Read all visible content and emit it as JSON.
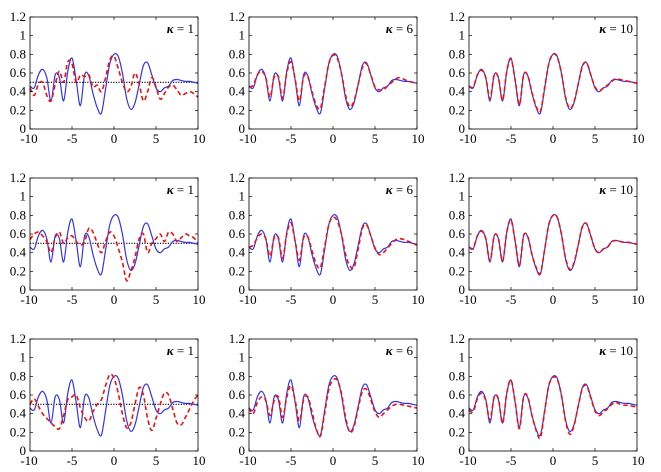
{
  "chart_data": {
    "type": "line",
    "layout": "3x3 grid of line plots",
    "xlim": [
      -10,
      10
    ],
    "ylim": [
      0,
      1.2
    ],
    "xticks": [
      -10,
      -5,
      0,
      5,
      10
    ],
    "yticks": [
      0,
      0.2,
      0.4,
      0.6,
      0.8,
      1,
      1.2
    ],
    "xtick_labels": [
      "-10",
      "-5",
      "0",
      "5",
      "10"
    ],
    "ytick_labels": [
      "0",
      "0.2",
      "0.4",
      "0.6",
      "0.8",
      "1",
      "1.2"
    ],
    "series_styles": {
      "exact": {
        "color": "#3333ee",
        "style": "solid"
      },
      "approx": {
        "color": "#ee1111",
        "style": "dashed"
      },
      "reference": {
        "color": "#000000",
        "style": "dotted"
      }
    },
    "exact_curve": {
      "x": [
        -10,
        -9.5,
        -9,
        -8.5,
        -8,
        -7.5,
        -7,
        -6.5,
        -6,
        -5.5,
        -5,
        -4.5,
        -4,
        -3.5,
        -3,
        -2.5,
        -2,
        -1.5,
        -1,
        -0.5,
        0,
        0.5,
        1,
        1.5,
        2,
        2.5,
        3,
        3.5,
        4,
        4.5,
        5,
        5.5,
        6,
        6.5,
        7,
        7.5,
        8,
        8.5,
        9,
        9.5,
        10
      ],
      "y": [
        0.46,
        0.44,
        0.58,
        0.64,
        0.55,
        0.3,
        0.58,
        0.55,
        0.3,
        0.62,
        0.76,
        0.52,
        0.25,
        0.58,
        0.57,
        0.38,
        0.23,
        0.17,
        0.43,
        0.7,
        0.8,
        0.78,
        0.6,
        0.33,
        0.21,
        0.28,
        0.48,
        0.68,
        0.71,
        0.58,
        0.44,
        0.4,
        0.44,
        0.46,
        0.52,
        0.53,
        0.52,
        0.51,
        0.51,
        0.5,
        0.49
      ]
    },
    "panels": [
      {
        "row": 1,
        "col": 1,
        "kappa_label": "κ = 1",
        "reference_line": 0.5,
        "approx_y": [
          0.44,
          0.36,
          0.48,
          0.5,
          0.36,
          0.3,
          0.48,
          0.62,
          0.5,
          0.72,
          0.7,
          0.5,
          0.58,
          0.56,
          0.58,
          0.45,
          0.47,
          0.4,
          0.55,
          0.74,
          0.78,
          0.65,
          0.5,
          0.4,
          0.45,
          0.6,
          0.48,
          0.3,
          0.4,
          0.55,
          0.45,
          0.32,
          0.38,
          0.45,
          0.47,
          0.42,
          0.36,
          0.38,
          0.4,
          0.38,
          0.34
        ]
      },
      {
        "row": 1,
        "col": 2,
        "kappa_label": "κ = 6",
        "reference_line": null,
        "approx_y": [
          0.45,
          0.47,
          0.58,
          0.62,
          0.55,
          0.34,
          0.56,
          0.56,
          0.33,
          0.6,
          0.72,
          0.53,
          0.3,
          0.56,
          0.56,
          0.4,
          0.26,
          0.22,
          0.45,
          0.7,
          0.79,
          0.76,
          0.6,
          0.36,
          0.24,
          0.3,
          0.48,
          0.66,
          0.7,
          0.58,
          0.45,
          0.42,
          0.42,
          0.46,
          0.5,
          0.54,
          0.55,
          0.53,
          0.51,
          0.5,
          0.49
        ]
      },
      {
        "row": 1,
        "col": 3,
        "kappa_label": "κ = 10",
        "reference_line": null,
        "approx_y": [
          0.46,
          0.45,
          0.58,
          0.63,
          0.55,
          0.32,
          0.58,
          0.55,
          0.31,
          0.62,
          0.75,
          0.52,
          0.26,
          0.58,
          0.57,
          0.39,
          0.24,
          0.19,
          0.44,
          0.7,
          0.8,
          0.77,
          0.6,
          0.34,
          0.22,
          0.29,
          0.48,
          0.67,
          0.71,
          0.58,
          0.45,
          0.41,
          0.44,
          0.47,
          0.51,
          0.54,
          0.53,
          0.52,
          0.51,
          0.5,
          0.49
        ]
      },
      {
        "row": 2,
        "col": 1,
        "kappa_label": "κ = 1",
        "reference_line": 0.5,
        "approx_y": [
          0.54,
          0.6,
          0.62,
          0.58,
          0.52,
          0.4,
          0.56,
          0.62,
          0.5,
          0.56,
          0.58,
          0.52,
          0.48,
          0.52,
          0.66,
          0.62,
          0.5,
          0.4,
          0.52,
          0.62,
          0.58,
          0.45,
          0.3,
          0.1,
          0.2,
          0.35,
          0.55,
          0.6,
          0.4,
          0.5,
          0.55,
          0.6,
          0.52,
          0.62,
          0.6,
          0.52,
          0.56,
          0.6,
          0.58,
          0.56,
          0.5
        ]
      },
      {
        "row": 2,
        "col": 2,
        "kappa_label": "κ = 6",
        "reference_line": null,
        "approx_y": [
          0.46,
          0.48,
          0.56,
          0.6,
          0.55,
          0.36,
          0.56,
          0.56,
          0.34,
          0.6,
          0.72,
          0.52,
          0.32,
          0.56,
          0.57,
          0.42,
          0.28,
          0.24,
          0.46,
          0.7,
          0.78,
          0.74,
          0.6,
          0.38,
          0.26,
          0.24,
          0.44,
          0.66,
          0.7,
          0.58,
          0.45,
          0.38,
          0.4,
          0.45,
          0.5,
          0.54,
          0.55,
          0.54,
          0.52,
          0.5,
          0.48
        ]
      },
      {
        "row": 2,
        "col": 3,
        "kappa_label": "κ = 10",
        "reference_line": null,
        "approx_y": [
          0.46,
          0.45,
          0.58,
          0.63,
          0.55,
          0.31,
          0.58,
          0.55,
          0.31,
          0.62,
          0.75,
          0.52,
          0.26,
          0.58,
          0.57,
          0.38,
          0.24,
          0.18,
          0.43,
          0.7,
          0.8,
          0.78,
          0.6,
          0.34,
          0.22,
          0.29,
          0.48,
          0.68,
          0.71,
          0.58,
          0.44,
          0.4,
          0.44,
          0.46,
          0.52,
          0.53,
          0.52,
          0.51,
          0.51,
          0.5,
          0.49
        ]
      },
      {
        "row": 3,
        "col": 1,
        "kappa_label": "κ = 1",
        "reference_line": 0.5,
        "approx_y": [
          0.5,
          0.56,
          0.48,
          0.4,
          0.35,
          0.3,
          0.26,
          0.24,
          0.38,
          0.55,
          0.58,
          0.6,
          0.46,
          0.36,
          0.32,
          0.42,
          0.5,
          0.55,
          0.7,
          0.82,
          0.78,
          0.62,
          0.4,
          0.25,
          0.3,
          0.5,
          0.68,
          0.6,
          0.35,
          0.22,
          0.35,
          0.5,
          0.62,
          0.6,
          0.45,
          0.3,
          0.28,
          0.36,
          0.45,
          0.54,
          0.6
        ]
      },
      {
        "row": 3,
        "col": 2,
        "kappa_label": "κ = 6",
        "reference_line": null,
        "approx_y": [
          0.46,
          0.4,
          0.52,
          0.58,
          0.54,
          0.38,
          0.54,
          0.58,
          0.36,
          0.58,
          0.7,
          0.54,
          0.32,
          0.55,
          0.58,
          0.42,
          0.24,
          0.16,
          0.4,
          0.66,
          0.76,
          0.76,
          0.62,
          0.36,
          0.2,
          0.26,
          0.46,
          0.64,
          0.66,
          0.55,
          0.42,
          0.36,
          0.4,
          0.44,
          0.48,
          0.5,
          0.5,
          0.49,
          0.48,
          0.47,
          0.46
        ]
      },
      {
        "row": 3,
        "col": 3,
        "kappa_label": "κ = 10",
        "reference_line": null,
        "approx_y": [
          0.44,
          0.42,
          0.56,
          0.62,
          0.54,
          0.33,
          0.58,
          0.56,
          0.3,
          0.62,
          0.76,
          0.52,
          0.24,
          0.58,
          0.58,
          0.38,
          0.22,
          0.14,
          0.42,
          0.7,
          0.79,
          0.77,
          0.6,
          0.32,
          0.18,
          0.27,
          0.48,
          0.67,
          0.7,
          0.57,
          0.43,
          0.38,
          0.42,
          0.45,
          0.5,
          0.52,
          0.5,
          0.49,
          0.49,
          0.48,
          0.47
        ]
      }
    ]
  }
}
